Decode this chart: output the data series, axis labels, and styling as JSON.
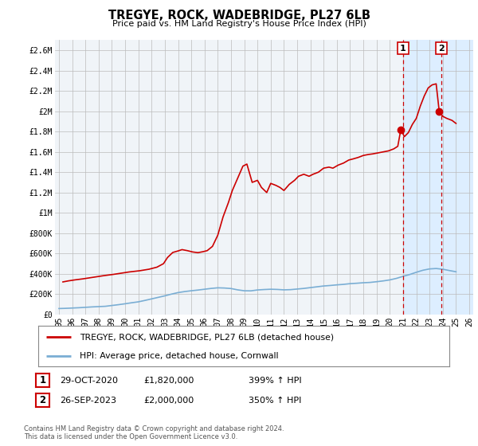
{
  "title": "TREGYE, ROCK, WADEBRIDGE, PL27 6LB",
  "subtitle": "Price paid vs. HM Land Registry's House Price Index (HPI)",
  "legend_line1": "TREGYE, ROCK, WADEBRIDGE, PL27 6LB (detached house)",
  "legend_line2": "HPI: Average price, detached house, Cornwall",
  "annotation1_date": "29-OCT-2020",
  "annotation1_price": "£1,820,000",
  "annotation1_hpi": "399% ↑ HPI",
  "annotation2_date": "26-SEP-2023",
  "annotation2_price": "£2,000,000",
  "annotation2_hpi": "350% ↑ HPI",
  "footer1": "Contains HM Land Registry data © Crown copyright and database right 2024.",
  "footer2": "This data is licensed under the Open Government Licence v3.0.",
  "red_color": "#cc0000",
  "blue_color": "#7aaed4",
  "shaded_color": "#ddeeff",
  "grid_color": "#bbbbbb",
  "background_color": "#ffffff",
  "plot_bg_color": "#f0f4f8",
  "ylim": [
    0,
    2700000
  ],
  "xlim_start": 1994.7,
  "xlim_end": 2026.3,
  "marker1_x": 2020.83,
  "marker1_y": 1820000,
  "marker2_x": 2023.73,
  "marker2_y": 2000000,
  "vline1_x": 2021.0,
  "vline2_x": 2023.9,
  "shade_start": 2021.0,
  "shade_end": 2026.3,
  "hpi_line_data_x": [
    1995.0,
    1995.5,
    1996.0,
    1996.5,
    1997.0,
    1997.5,
    1998.0,
    1998.5,
    1999.0,
    1999.5,
    2000.0,
    2000.5,
    2001.0,
    2001.5,
    2002.0,
    2002.5,
    2003.0,
    2003.5,
    2004.0,
    2004.5,
    2005.0,
    2005.5,
    2006.0,
    2006.5,
    2007.0,
    2007.5,
    2008.0,
    2008.5,
    2009.0,
    2009.5,
    2010.0,
    2010.5,
    2011.0,
    2011.5,
    2012.0,
    2012.5,
    2013.0,
    2013.5,
    2014.0,
    2014.5,
    2015.0,
    2015.5,
    2016.0,
    2016.5,
    2017.0,
    2017.5,
    2018.0,
    2018.5,
    2019.0,
    2019.5,
    2020.0,
    2020.5,
    2021.0,
    2021.5,
    2022.0,
    2022.5,
    2023.0,
    2023.5,
    2024.0,
    2024.5,
    2025.0
  ],
  "hpi_line_data_y": [
    58000,
    60000,
    63000,
    66000,
    70000,
    74000,
    77000,
    80000,
    88000,
    96000,
    105000,
    115000,
    124000,
    138000,
    153000,
    168000,
    183000,
    200000,
    215000,
    225000,
    233000,
    240000,
    248000,
    256000,
    262000,
    260000,
    255000,
    242000,
    233000,
    232000,
    241000,
    245000,
    248000,
    246000,
    242000,
    244000,
    250000,
    256000,
    264000,
    272000,
    280000,
    285000,
    291000,
    296000,
    303000,
    307000,
    312000,
    315000,
    322000,
    330000,
    340000,
    355000,
    375000,
    393000,
    415000,
    435000,
    448000,
    452000,
    445000,
    432000,
    420000
  ],
  "price_line_data_x": [
    1995.3,
    1995.7,
    1996.2,
    1996.8,
    1997.3,
    1997.9,
    1998.4,
    1999.1,
    1999.8,
    2000.3,
    2001.1,
    2001.8,
    2002.4,
    2002.9,
    2003.2,
    2003.6,
    2004.0,
    2004.3,
    2004.7,
    2005.1,
    2005.5,
    2005.9,
    2006.2,
    2006.6,
    2007.0,
    2007.4,
    2007.8,
    2008.1,
    2008.5,
    2008.9,
    2009.2,
    2009.6,
    2010.0,
    2010.3,
    2010.7,
    2011.0,
    2011.4,
    2011.7,
    2012.0,
    2012.4,
    2012.8,
    2013.1,
    2013.5,
    2013.9,
    2014.2,
    2014.6,
    2015.0,
    2015.4,
    2015.7,
    2016.1,
    2016.5,
    2016.9,
    2017.2,
    2017.6,
    2018.0,
    2018.4,
    2018.7,
    2019.1,
    2019.5,
    2019.9,
    2020.3,
    2020.6,
    2020.83,
    2021.1,
    2021.4,
    2021.7,
    2022.0,
    2022.3,
    2022.6,
    2022.9,
    2023.2,
    2023.5,
    2023.73,
    2024.0,
    2024.3,
    2024.7,
    2025.0
  ],
  "price_line_data_y": [
    320000,
    330000,
    340000,
    350000,
    360000,
    372000,
    382000,
    394000,
    408000,
    418000,
    430000,
    445000,
    465000,
    500000,
    560000,
    610000,
    625000,
    638000,
    628000,
    615000,
    608000,
    618000,
    628000,
    670000,
    780000,
    960000,
    1100000,
    1220000,
    1340000,
    1460000,
    1480000,
    1300000,
    1320000,
    1250000,
    1200000,
    1290000,
    1270000,
    1250000,
    1220000,
    1280000,
    1320000,
    1360000,
    1380000,
    1360000,
    1380000,
    1400000,
    1440000,
    1450000,
    1440000,
    1470000,
    1490000,
    1520000,
    1530000,
    1545000,
    1565000,
    1575000,
    1580000,
    1590000,
    1600000,
    1610000,
    1630000,
    1655000,
    1820000,
    1750000,
    1790000,
    1870000,
    1930000,
    2050000,
    2150000,
    2230000,
    2260000,
    2270000,
    2000000,
    1950000,
    1930000,
    1910000,
    1880000
  ]
}
